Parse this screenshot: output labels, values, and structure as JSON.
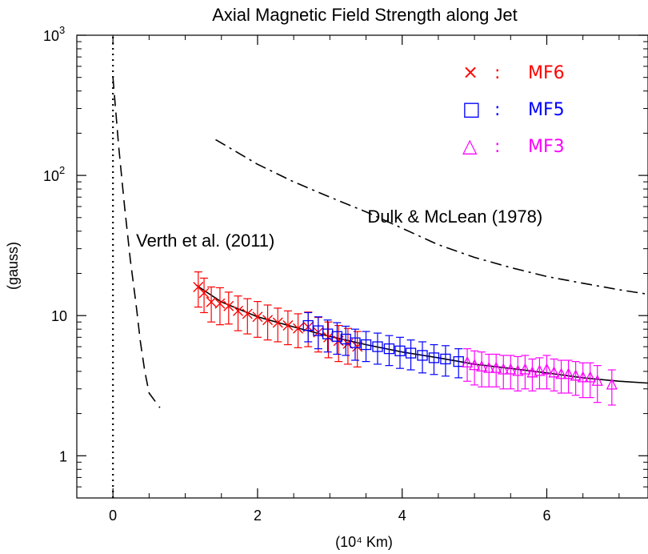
{
  "chart_data": {
    "type": "scatter",
    "title": "Axial Magnetic Field Strength along Jet",
    "xlabel": "(10⁴ Km)",
    "ylabel": "(gauss)",
    "xlim": [
      -0.5,
      7.4
    ],
    "ylim": [
      0.5,
      1000
    ],
    "yscale": "log",
    "grid": false,
    "legend_position": "top-right",
    "x_ticks": [
      {
        "value": 0,
        "label": "0"
      },
      {
        "value": 2,
        "label": "2"
      },
      {
        "value": 4,
        "label": "4"
      },
      {
        "value": 6,
        "label": "6"
      }
    ],
    "y_ticks": [
      {
        "value": 1,
        "label": "1"
      },
      {
        "value": 10,
        "label": "10"
      },
      {
        "value": 100,
        "label": "10",
        "exp": "2"
      },
      {
        "value": 1000,
        "label": "10",
        "exp": "3"
      }
    ],
    "legend": [
      {
        "marker": "×",
        "sep": ":",
        "label": "MF6",
        "color": "#ff0000"
      },
      {
        "marker": "□",
        "sep": ":",
        "label": "MF5",
        "color": "#0000ff"
      },
      {
        "marker": "△",
        "sep": ":",
        "label": "MF3",
        "color": "#ff00ff"
      }
    ],
    "annotations": [
      {
        "text": "Verth et al. (2011)",
        "x": 0.32,
        "y": 31
      },
      {
        "text": "Dulk & McLean (1978)",
        "x": 3.52,
        "y": 46
      }
    ],
    "series": [
      {
        "name": "MF6",
        "color": "#ff0000",
        "marker": "x",
        "points": [
          {
            "x": 1.18,
            "y": 16.0,
            "err": 4.5
          },
          {
            "x": 1.26,
            "y": 14.5,
            "err": 4.0
          },
          {
            "x": 1.36,
            "y": 12.5,
            "err": 3.5
          },
          {
            "x": 1.48,
            "y": 12.2,
            "err": 3.6
          },
          {
            "x": 1.6,
            "y": 11.7,
            "err": 3.0
          },
          {
            "x": 1.73,
            "y": 10.8,
            "err": 3.0
          },
          {
            "x": 1.86,
            "y": 10.3,
            "err": 2.9
          },
          {
            "x": 2.0,
            "y": 9.8,
            "err": 2.8
          },
          {
            "x": 2.14,
            "y": 9.3,
            "err": 2.6
          },
          {
            "x": 2.28,
            "y": 8.9,
            "err": 2.4
          },
          {
            "x": 2.42,
            "y": 8.5,
            "err": 2.3
          },
          {
            "x": 2.56,
            "y": 8.1,
            "err": 2.2
          },
          {
            "x": 2.7,
            "y": 8.3,
            "err": 2.3
          },
          {
            "x": 2.84,
            "y": 7.6,
            "err": 2.1
          },
          {
            "x": 2.98,
            "y": 7.0,
            "err": 2.0
          },
          {
            "x": 3.12,
            "y": 6.6,
            "err": 1.9
          },
          {
            "x": 3.25,
            "y": 6.3,
            "err": 1.8
          },
          {
            "x": 3.38,
            "y": 6.0,
            "err": 1.7
          }
        ]
      },
      {
        "name": "MF5",
        "color": "#0000ff",
        "marker": "square",
        "points": [
          {
            "x": 2.7,
            "y": 8.5,
            "err": 2.0
          },
          {
            "x": 2.84,
            "y": 7.8,
            "err": 2.0
          },
          {
            "x": 2.97,
            "y": 7.4,
            "err": 1.9
          },
          {
            "x": 3.1,
            "y": 7.1,
            "err": 1.8
          },
          {
            "x": 3.22,
            "y": 6.8,
            "err": 1.6
          },
          {
            "x": 3.35,
            "y": 6.4,
            "err": 1.6
          },
          {
            "x": 3.5,
            "y": 6.2,
            "err": 1.5
          },
          {
            "x": 3.66,
            "y": 6.0,
            "err": 1.5
          },
          {
            "x": 3.82,
            "y": 5.8,
            "err": 1.4
          },
          {
            "x": 3.97,
            "y": 5.6,
            "err": 1.4
          },
          {
            "x": 4.12,
            "y": 5.4,
            "err": 1.3
          },
          {
            "x": 4.28,
            "y": 5.2,
            "err": 1.3
          },
          {
            "x": 4.44,
            "y": 5.0,
            "err": 1.2
          },
          {
            "x": 4.6,
            "y": 4.9,
            "err": 1.2
          },
          {
            "x": 4.78,
            "y": 4.7,
            "err": 1.1
          }
        ]
      },
      {
        "name": "MF3",
        "color": "#ff00ff",
        "marker": "triangle",
        "points": [
          {
            "x": 4.9,
            "y": 4.6,
            "err": 1.2
          },
          {
            "x": 5.0,
            "y": 4.4,
            "err": 1.2
          },
          {
            "x": 5.1,
            "y": 4.3,
            "err": 1.2
          },
          {
            "x": 5.2,
            "y": 4.2,
            "err": 1.1
          },
          {
            "x": 5.3,
            "y": 4.2,
            "err": 1.1
          },
          {
            "x": 5.4,
            "y": 4.1,
            "err": 1.1
          },
          {
            "x": 5.5,
            "y": 4.1,
            "err": 1.1
          },
          {
            "x": 5.6,
            "y": 4.0,
            "err": 1.1
          },
          {
            "x": 5.7,
            "y": 4.1,
            "err": 1.1
          },
          {
            "x": 5.8,
            "y": 3.9,
            "err": 1.0
          },
          {
            "x": 5.9,
            "y": 4.0,
            "err": 1.0
          },
          {
            "x": 6.0,
            "y": 4.1,
            "err": 1.1
          },
          {
            "x": 6.1,
            "y": 3.9,
            "err": 1.0
          },
          {
            "x": 6.2,
            "y": 3.8,
            "err": 1.0
          },
          {
            "x": 6.3,
            "y": 3.8,
            "err": 1.0
          },
          {
            "x": 6.4,
            "y": 3.7,
            "err": 1.0
          },
          {
            "x": 6.5,
            "y": 3.6,
            "err": 1.0
          },
          {
            "x": 6.6,
            "y": 3.6,
            "err": 1.0
          },
          {
            "x": 6.7,
            "y": 3.4,
            "err": 1.0
          },
          {
            "x": 6.9,
            "y": 3.2,
            "err": 0.9
          }
        ]
      }
    ],
    "lines": [
      {
        "style": "dotted",
        "points": [
          [
            0,
            0.5
          ],
          [
            0,
            1000
          ]
        ]
      },
      {
        "style": "dashed",
        "points": [
          [
            0.0,
            500
          ],
          [
            0.08,
            160
          ],
          [
            0.16,
            60
          ],
          [
            0.24,
            25
          ],
          [
            0.32,
            12
          ],
          [
            0.38,
            6.5
          ],
          [
            0.44,
            4.0
          ],
          [
            0.5,
            2.8
          ],
          [
            0.65,
            2.2
          ]
        ]
      },
      {
        "style": "dashdot",
        "points": [
          [
            1.42,
            180
          ],
          [
            2.0,
            120
          ],
          [
            2.5,
            90
          ],
          [
            3.0,
            70
          ],
          [
            3.5,
            55
          ],
          [
            4.0,
            42
          ],
          [
            4.5,
            32
          ],
          [
            5.0,
            26
          ],
          [
            5.5,
            22
          ],
          [
            6.0,
            19
          ],
          [
            6.5,
            17
          ],
          [
            7.0,
            15.3
          ],
          [
            7.4,
            14.2
          ]
        ]
      },
      {
        "style": "solid",
        "points": [
          [
            1.15,
            16.5
          ],
          [
            1.5,
            12.5
          ],
          [
            2.0,
            9.8
          ],
          [
            2.5,
            8.3
          ],
          [
            3.0,
            7.1
          ],
          [
            3.5,
            6.2
          ],
          [
            4.0,
            5.5
          ],
          [
            4.5,
            5.0
          ],
          [
            5.0,
            4.5
          ],
          [
            5.5,
            4.2
          ],
          [
            6.0,
            3.9
          ],
          [
            6.5,
            3.6
          ],
          [
            7.0,
            3.4
          ],
          [
            7.4,
            3.3
          ]
        ]
      }
    ]
  }
}
